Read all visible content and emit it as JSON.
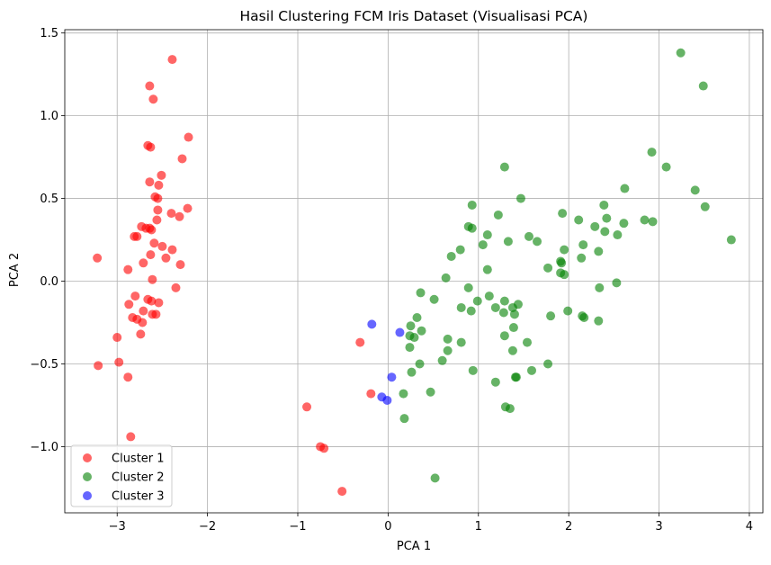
{
  "chart_data": {
    "type": "scatter",
    "title": "Hasil Clustering FCM Iris Dataset (Visualisasi PCA)",
    "xlabel": "PCA 1",
    "ylabel": "PCA 2",
    "xlim": [
      -3.58,
      4.15
    ],
    "ylim": [
      -1.4,
      1.52
    ],
    "xticks": [
      -3,
      -2,
      -1,
      0,
      1,
      2,
      3,
      4
    ],
    "xtick_labels": [
      "−3",
      "−2",
      "−1",
      "0",
      "1",
      "2",
      "3",
      "4"
    ],
    "yticks": [
      -1.0,
      -0.5,
      0.0,
      0.5,
      1.0,
      1.5
    ],
    "ytick_labels": [
      "−1.0",
      "−0.5",
      "0.0",
      "0.5",
      "1.0",
      "1.5"
    ],
    "grid": true,
    "legend_position": "lower-left",
    "series": [
      {
        "name": "Cluster 1",
        "color": "#ff0000",
        "points": [
          [
            -2.64,
            1.18
          ],
          [
            -2.6,
            1.1
          ],
          [
            -2.39,
            1.34
          ],
          [
            -2.66,
            0.82
          ],
          [
            -2.63,
            0.81
          ],
          [
            -2.21,
            0.87
          ],
          [
            -2.28,
            0.74
          ],
          [
            -2.51,
            0.64
          ],
          [
            -2.64,
            0.6
          ],
          [
            -2.54,
            0.58
          ],
          [
            -2.58,
            0.51
          ],
          [
            -2.55,
            0.5
          ],
          [
            -2.55,
            0.43
          ],
          [
            -2.22,
            0.44
          ],
          [
            -2.31,
            0.39
          ],
          [
            -2.4,
            0.41
          ],
          [
            -2.56,
            0.37
          ],
          [
            -2.73,
            0.33
          ],
          [
            -2.68,
            0.32
          ],
          [
            -2.64,
            0.32
          ],
          [
            -2.62,
            0.31
          ],
          [
            -2.81,
            0.27
          ],
          [
            -2.78,
            0.27
          ],
          [
            -2.59,
            0.23
          ],
          [
            -2.5,
            0.21
          ],
          [
            -2.39,
            0.19
          ],
          [
            -2.63,
            0.16
          ],
          [
            -2.46,
            0.14
          ],
          [
            -3.22,
            0.14
          ],
          [
            -2.71,
            0.11
          ],
          [
            -2.3,
            0.1
          ],
          [
            -2.88,
            0.07
          ],
          [
            -2.61,
            0.01
          ],
          [
            -2.35,
            -0.04
          ],
          [
            -2.8,
            -0.09
          ],
          [
            -2.66,
            -0.11
          ],
          [
            -2.62,
            -0.12
          ],
          [
            -2.54,
            -0.13
          ],
          [
            -2.87,
            -0.14
          ],
          [
            -2.71,
            -0.18
          ],
          [
            -2.61,
            -0.2
          ],
          [
            -2.57,
            -0.2
          ],
          [
            -2.83,
            -0.22
          ],
          [
            -2.78,
            -0.23
          ],
          [
            -2.72,
            -0.25
          ],
          [
            -2.74,
            -0.32
          ],
          [
            -3.0,
            -0.34
          ],
          [
            -0.31,
            -0.37
          ],
          [
            -2.98,
            -0.49
          ],
          [
            -3.21,
            -0.51
          ],
          [
            -2.88,
            -0.58
          ],
          [
            -0.19,
            -0.68
          ],
          [
            -0.9,
            -0.76
          ],
          [
            -2.85,
            -0.94
          ],
          [
            -0.75,
            -1.0
          ],
          [
            -0.71,
            -1.01
          ],
          [
            -0.51,
            -1.27
          ]
        ]
      },
      {
        "name": "Cluster 2",
        "color": "#008000",
        "points": [
          [
            3.24,
            1.38
          ],
          [
            3.49,
            1.18
          ],
          [
            2.92,
            0.78
          ],
          [
            3.08,
            0.69
          ],
          [
            1.29,
            0.69
          ],
          [
            2.62,
            0.56
          ],
          [
            3.4,
            0.55
          ],
          [
            1.47,
            0.5
          ],
          [
            0.93,
            0.46
          ],
          [
            3.51,
            0.45
          ],
          [
            2.39,
            0.46
          ],
          [
            1.93,
            0.41
          ],
          [
            1.22,
            0.4
          ],
          [
            2.42,
            0.38
          ],
          [
            2.84,
            0.37
          ],
          [
            2.11,
            0.37
          ],
          [
            2.93,
            0.36
          ],
          [
            2.61,
            0.35
          ],
          [
            2.29,
            0.33
          ],
          [
            0.89,
            0.33
          ],
          [
            0.93,
            0.32
          ],
          [
            2.54,
            0.28
          ],
          [
            2.4,
            0.3
          ],
          [
            1.1,
            0.28
          ],
          [
            1.56,
            0.27
          ],
          [
            1.33,
            0.24
          ],
          [
            1.65,
            0.24
          ],
          [
            3.8,
            0.25
          ],
          [
            1.05,
            0.22
          ],
          [
            2.16,
            0.22
          ],
          [
            1.95,
            0.19
          ],
          [
            0.8,
            0.19
          ],
          [
            2.14,
            0.14
          ],
          [
            0.7,
            0.15
          ],
          [
            2.33,
            0.18
          ],
          [
            1.91,
            0.12
          ],
          [
            1.92,
            0.11
          ],
          [
            1.77,
            0.08
          ],
          [
            1.1,
            0.07
          ],
          [
            1.95,
            0.04
          ],
          [
            1.91,
            0.05
          ],
          [
            0.64,
            0.02
          ],
          [
            2.53,
            -0.01
          ],
          [
            2.34,
            -0.04
          ],
          [
            0.36,
            -0.07
          ],
          [
            0.89,
            -0.04
          ],
          [
            1.12,
            -0.09
          ],
          [
            0.51,
            -0.11
          ],
          [
            0.99,
            -0.12
          ],
          [
            1.29,
            -0.12
          ],
          [
            1.44,
            -0.14
          ],
          [
            1.19,
            -0.16
          ],
          [
            0.81,
            -0.16
          ],
          [
            1.38,
            -0.16
          ],
          [
            0.92,
            -0.18
          ],
          [
            1.99,
            -0.18
          ],
          [
            1.28,
            -0.19
          ],
          [
            1.4,
            -0.2
          ],
          [
            1.8,
            -0.21
          ],
          [
            2.15,
            -0.21
          ],
          [
            2.17,
            -0.22
          ],
          [
            0.32,
            -0.22
          ],
          [
            2.33,
            -0.24
          ],
          [
            0.25,
            -0.27
          ],
          [
            0.37,
            -0.3
          ],
          [
            1.39,
            -0.28
          ],
          [
            0.24,
            -0.33
          ],
          [
            1.29,
            -0.33
          ],
          [
            0.29,
            -0.34
          ],
          [
            0.66,
            -0.35
          ],
          [
            0.81,
            -0.37
          ],
          [
            1.54,
            -0.37
          ],
          [
            0.24,
            -0.4
          ],
          [
            0.66,
            -0.42
          ],
          [
            1.38,
            -0.42
          ],
          [
            0.6,
            -0.48
          ],
          [
            1.77,
            -0.5
          ],
          [
            0.35,
            -0.5
          ],
          [
            0.26,
            -0.55
          ],
          [
            0.94,
            -0.54
          ],
          [
            1.59,
            -0.54
          ],
          [
            1.41,
            -0.58
          ],
          [
            1.42,
            -0.58
          ],
          [
            1.19,
            -0.61
          ],
          [
            0.47,
            -0.67
          ],
          [
            0.17,
            -0.68
          ],
          [
            1.3,
            -0.76
          ],
          [
            1.35,
            -0.77
          ],
          [
            0.18,
            -0.83
          ],
          [
            0.52,
            -1.19
          ]
        ]
      },
      {
        "name": "Cluster 3",
        "color": "#0000ff",
        "points": [
          [
            -0.18,
            -0.26
          ],
          [
            0.13,
            -0.31
          ],
          [
            0.04,
            -0.58
          ],
          [
            -0.07,
            -0.7
          ],
          [
            -0.01,
            -0.72
          ]
        ]
      }
    ]
  }
}
